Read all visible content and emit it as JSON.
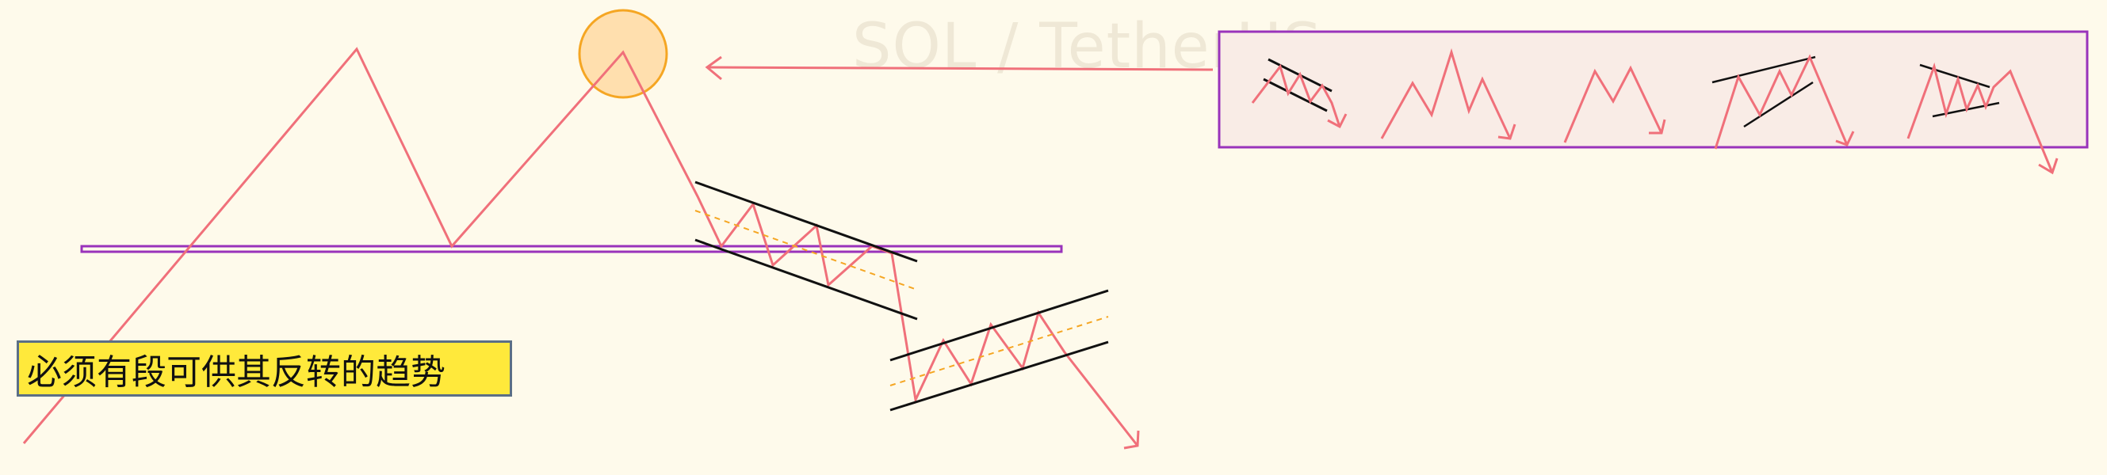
{
  "watermark": "SOL / TetherUS",
  "annotation": {
    "text": "必须有段可供其反转的趋势"
  },
  "colors": {
    "background": "#fefaeb",
    "price_path": "#f0707a",
    "support_line": "#9933bb",
    "channel_lines": "#111111",
    "midline": "#f5a623",
    "highlight_circle_fill": "#ffd9a3",
    "highlight_circle_stroke": "#f5a623",
    "legend_box_fill": "#f9ece6",
    "legend_box_stroke": "#9933bb",
    "annotation_fill": "#ffe93b",
    "annotation_border": "#5b6f86"
  },
  "chart_data": {
    "type": "line",
    "title": "",
    "xlabel": "",
    "ylabel": "",
    "grid": false,
    "description_shapes": [
      "horizontal support line",
      "highlight circle at second peak",
      "arrow pointing from pattern box to circled peak",
      "descending channel after the peak",
      "ascending channel before final breakdown",
      "pattern examples box"
    ]
  }
}
